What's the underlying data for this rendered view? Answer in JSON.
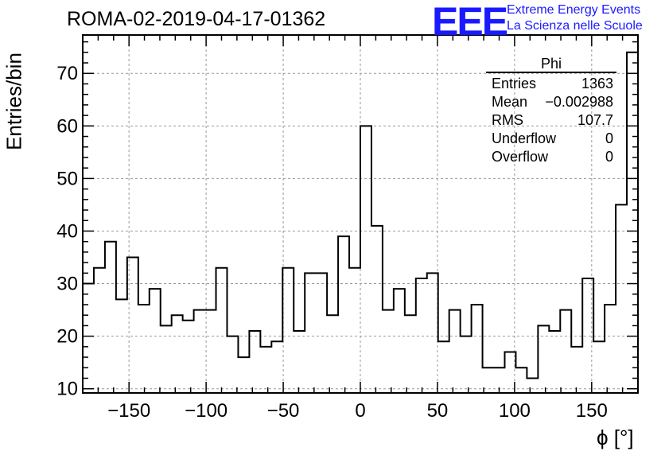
{
  "title": "ROMA-02-2019-04-17-01362",
  "logo": {
    "mark": "EEE",
    "line1": "Extreme Energy Events",
    "line2": "La Scienza nelle Scuole",
    "color": "#1a1aff"
  },
  "stats_box": {
    "name": "Phi",
    "rows": [
      {
        "label": "Entries",
        "value": "1363"
      },
      {
        "label": "Mean",
        "value": "−0.002988"
      },
      {
        "label": "RMS",
        "value": "107.7"
      },
      {
        "label": "Underflow",
        "value": "0"
      },
      {
        "label": "Overflow",
        "value": "0"
      }
    ]
  },
  "chart_data": {
    "type": "bar",
    "title": "ROMA-02-2019-04-17-01362",
    "xlabel": "ϕ [°]",
    "ylabel": "Entries/bin",
    "bin_edges_start": -180,
    "bin_width": 7.2,
    "values": [
      30,
      33,
      38,
      27,
      35,
      26,
      29,
      22,
      24,
      23,
      25,
      25,
      33,
      20,
      16,
      21,
      18,
      19,
      33,
      21,
      32,
      32,
      24,
      39,
      33,
      60,
      41,
      25,
      29,
      24,
      31,
      32,
      19,
      25,
      20,
      26,
      14,
      14,
      17,
      14,
      12,
      22,
      21,
      25,
      18,
      31,
      19,
      26,
      45,
      74
    ],
    "xlim": [
      -180,
      180
    ],
    "ylim": [
      9.2,
      77.3
    ],
    "xticks": [
      -150,
      -100,
      -50,
      0,
      50,
      100,
      150
    ],
    "xtick_labels": [
      "−150",
      "−100",
      "−50",
      "0",
      "50",
      "100",
      "150"
    ],
    "yticks": [
      10,
      20,
      30,
      40,
      50,
      60,
      70
    ],
    "ytick_labels": [
      "10",
      "20",
      "30",
      "40",
      "50",
      "60",
      "70"
    ],
    "grid": true,
    "line_color": "#000000"
  }
}
